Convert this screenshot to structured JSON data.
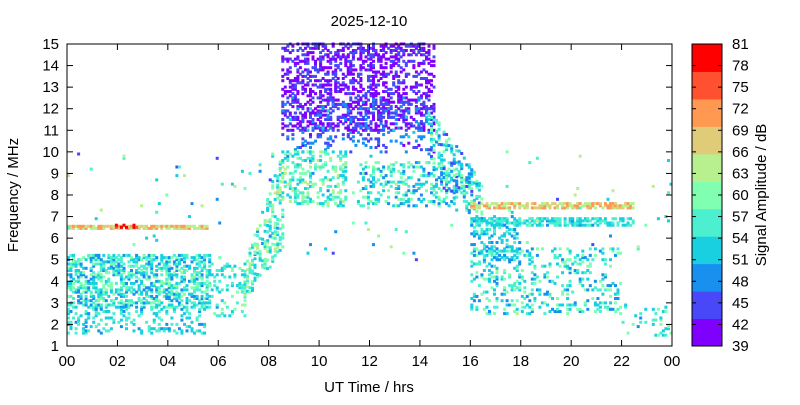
{
  "chart_data": {
    "type": "scatter",
    "title": "2025-12-10",
    "xlabel": "UT Time / hrs",
    "ylabel": "Frequency / MHz",
    "xlim": [
      0,
      24
    ],
    "ylim": [
      1,
      15
    ],
    "x_tick_labels": [
      "00",
      "02",
      "04",
      "06",
      "08",
      "10",
      "12",
      "14",
      "16",
      "18",
      "20",
      "22",
      "00"
    ],
    "y_tick_labels": [
      "1",
      "2",
      "3",
      "4",
      "5",
      "6",
      "7",
      "8",
      "9",
      "10",
      "11",
      "12",
      "13",
      "14",
      "15"
    ],
    "colorbar": {
      "label": "Signal Amplitude / dB",
      "range": [
        39,
        81
      ],
      "tick_labels": [
        "81",
        "78",
        "75",
        "72",
        "69",
        "66",
        "63",
        "60",
        "57",
        "54",
        "51",
        "48",
        "45",
        "42",
        "39"
      ],
      "colors": [
        "#8000ff",
        "#4848f8",
        "#1890f0",
        "#18d0e0",
        "#4cf0d0",
        "#80ffb0",
        "#b8f090",
        "#e0cc78",
        "#ff9850",
        "#ff5030",
        "#ff0000"
      ]
    },
    "point_step": {
      "time_hrs": 0.1,
      "freq_mhz": 0.1
    },
    "clusters": [
      {
        "t": [
          0,
          5.6
        ],
        "f_lo": [
          2.8,
          2.8
        ],
        "f_hi": [
          5.2,
          5.2
        ],
        "amp": [
          48,
          61
        ],
        "density": 0.5
      },
      {
        "t": [
          0,
          5.6
        ],
        "f_lo": [
          1.6,
          1.6
        ],
        "f_hi": [
          2.8,
          2.8
        ],
        "amp": [
          48,
          58
        ],
        "density": 0.25
      },
      {
        "t": [
          0,
          5.5
        ],
        "f_lo": [
          6.45,
          6.45
        ],
        "f_hi": [
          6.6,
          6.6
        ],
        "amp": [
          63,
          73
        ],
        "density": 0.9
      },
      {
        "t": [
          1.8,
          2.8
        ],
        "f_lo": [
          6.5,
          6.5
        ],
        "f_hi": [
          6.6,
          6.6
        ],
        "amp": [
          76,
          80
        ],
        "density": 0.5
      },
      {
        "t": [
          5.5,
          7.0
        ],
        "f_lo": [
          2.4,
          2.4
        ],
        "f_hi": [
          4.8,
          4.8
        ],
        "amp": [
          50,
          60
        ],
        "density": 0.2
      },
      {
        "t": [
          6.9,
          8.5
        ],
        "f_lo": [
          2.8,
          5.5
        ],
        "f_hi": [
          4.5,
          10
        ],
        "amp": [
          50,
          64
        ],
        "density": 0.3
      },
      {
        "t": [
          8.5,
          14.5
        ],
        "f_lo": [
          11,
          11
        ],
        "f_hi": [
          15,
          15
        ],
        "amp": [
          39,
          46
        ],
        "density": 0.4
      },
      {
        "t": [
          8.5,
          14.5
        ],
        "f_lo": [
          10,
          10
        ],
        "f_hi": [
          12.5,
          12.5
        ],
        "amp": [
          42,
          51
        ],
        "density": 0.15
      },
      {
        "t": [
          8.5,
          11
        ],
        "f_lo": [
          7.5,
          7.5
        ],
        "f_hi": [
          10,
          10
        ],
        "amp": [
          50,
          64
        ],
        "density": 0.3
      },
      {
        "t": [
          11.5,
          16
        ],
        "f_lo": [
          7.5,
          7.5
        ],
        "f_hi": [
          9.5,
          9.5
        ],
        "amp": [
          48,
          62
        ],
        "density": 0.25
      },
      {
        "t": [
          14.3,
          16.5
        ],
        "f_lo": [
          9,
          6.5
        ],
        "f_hi": [
          12,
          8.5
        ],
        "amp": [
          45,
          62
        ],
        "density": 0.3
      },
      {
        "t": [
          16,
          22.5
        ],
        "f_lo": [
          7.4,
          7.4
        ],
        "f_hi": [
          7.6,
          7.6
        ],
        "amp": [
          62,
          73
        ],
        "density": 0.7
      },
      {
        "t": [
          16,
          22.5
        ],
        "f_lo": [
          6.6,
          6.6
        ],
        "f_hi": [
          6.9,
          6.9
        ],
        "amp": [
          50,
          58
        ],
        "density": 0.6
      },
      {
        "t": [
          16,
          22
        ],
        "f_lo": [
          2.5,
          2.5
        ],
        "f_hi": [
          5.5,
          5.5
        ],
        "amp": [
          48,
          62
        ],
        "density": 0.2
      },
      {
        "t": [
          16,
          18
        ],
        "f_lo": [
          5,
          5
        ],
        "f_hi": [
          7,
          7
        ],
        "amp": [
          48,
          58
        ],
        "density": 0.25
      },
      {
        "t": [
          22,
          24
        ],
        "f_lo": [
          1.5,
          1.5
        ],
        "f_hi": [
          3,
          3
        ],
        "amp": [
          50,
          60
        ],
        "density": 0.1
      },
      {
        "t": [
          0,
          24
        ],
        "f_lo": [
          5,
          5
        ],
        "f_hi": [
          10,
          10
        ],
        "amp": [
          45,
          66
        ],
        "density": 0.01
      }
    ]
  }
}
